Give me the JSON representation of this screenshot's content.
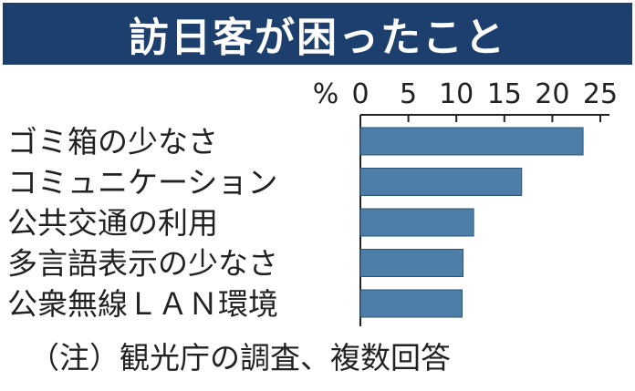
{
  "title": "訪日客が困ったこと",
  "note": "（注）観光庁の調査、複数回答",
  "chart_data": {
    "type": "bar",
    "orientation": "horizontal",
    "unit": "%",
    "categories": [
      "ゴミ箱の少なさ",
      "コミュニケーション",
      "公共交通の利用",
      "多言語表示の少なさ",
      "公衆無線ＬＡＮ環境"
    ],
    "values": [
      23.2,
      16.8,
      11.8,
      10.7,
      10.6
    ],
    "xlim": [
      0,
      25
    ],
    "ticks": [
      "0",
      "5",
      "10",
      "15",
      "20",
      "25"
    ],
    "bar_color": "#4d7ea8",
    "grid": false
  }
}
